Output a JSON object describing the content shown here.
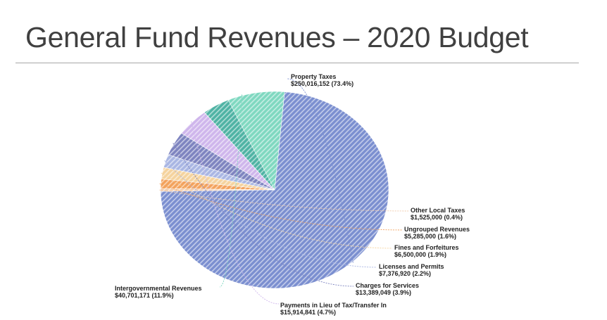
{
  "page": {
    "title": "General Fund Revenues – 2020 Budget"
  },
  "chart_data": {
    "type": "pie",
    "title": "",
    "slices": [
      {
        "name": "Property Taxes",
        "value": 250016152,
        "value_label": "$250,016,152 (73.4%)",
        "percent": 73.4,
        "color": "#7b8fd0"
      },
      {
        "name": "Other Local Taxes",
        "value": 1525000,
        "value_label": "$1,525,000 (0.4%)",
        "percent": 0.4,
        "color": "#f0c9a8"
      },
      {
        "name": "Ungrouped Revenues",
        "value": 5285000,
        "value_label": "$5,285,000 (1.6%)",
        "percent": 1.6,
        "color": "#f3a25c"
      },
      {
        "name": "Fines and Forfeitures",
        "value": 6500000,
        "value_label": "$6,500,000 (1.9%)",
        "percent": 1.9,
        "color": "#f5d39e"
      },
      {
        "name": "Licenses and Permits",
        "value": 7376920,
        "value_label": "$7,376,920 (2.2%)",
        "percent": 2.2,
        "color": "#a9b6e3"
      },
      {
        "name": "Charges for Services",
        "value": 13389049,
        "value_label": "$13,389,049 (3.9%)",
        "percent": 3.9,
        "color": "#7e84c0"
      },
      {
        "name": "Payments in Lieu of Tax/Transfer In",
        "value": 15914841,
        "value_label": "$15,914,841 (4.7%)",
        "percent": 4.7,
        "color": "#cfb6ec"
      },
      {
        "name": "Intergovernmental Revenues",
        "value": 40701171,
        "value_label": "$40,701,171 (11.9%)",
        "percent": 11.9,
        "color": "#7fd8c0"
      }
    ],
    "overlay_slice": {
      "value_label": "$15,914,841 (4.7%)",
      "color": "#4fb3a4"
    },
    "legend": "none"
  }
}
